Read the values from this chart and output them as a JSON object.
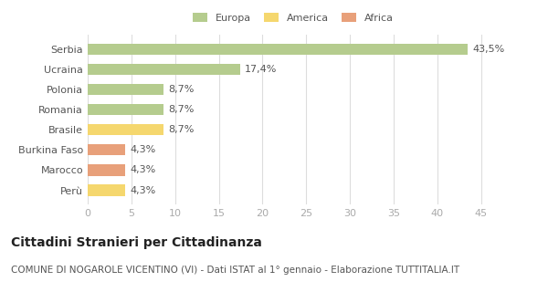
{
  "categories": [
    "Serbia",
    "Ucraina",
    "Polonia",
    "Romania",
    "Brasile",
    "Burkina Faso",
    "Marocco",
    "Perù"
  ],
  "values": [
    43.5,
    17.4,
    8.7,
    8.7,
    8.7,
    4.3,
    4.3,
    4.3
  ],
  "labels": [
    "43,5%",
    "17,4%",
    "8,7%",
    "8,7%",
    "8,7%",
    "4,3%",
    "4,3%",
    "4,3%"
  ],
  "colors": [
    "#b5cc8e",
    "#b5cc8e",
    "#b5cc8e",
    "#b5cc8e",
    "#f5d76e",
    "#e8a07a",
    "#e8a07a",
    "#f5d76e"
  ],
  "legend": [
    {
      "label": "Europa",
      "color": "#b5cc8e"
    },
    {
      "label": "America",
      "color": "#f5d76e"
    },
    {
      "label": "Africa",
      "color": "#e8a07a"
    }
  ],
  "xlim": [
    0,
    47
  ],
  "xticks": [
    0,
    5,
    10,
    15,
    20,
    25,
    30,
    35,
    40,
    45
  ],
  "title": "Cittadini Stranieri per Cittadinanza",
  "subtitle": "COMUNE DI NOGAROLE VICENTINO (VI) - Dati ISTAT al 1° gennaio - Elaborazione TUTTITALIA.IT",
  "background_color": "#ffffff",
  "grid_color": "#dddddd",
  "bar_height": 0.55,
  "label_fontsize": 8,
  "tick_fontsize": 8,
  "title_fontsize": 10,
  "subtitle_fontsize": 7.5
}
